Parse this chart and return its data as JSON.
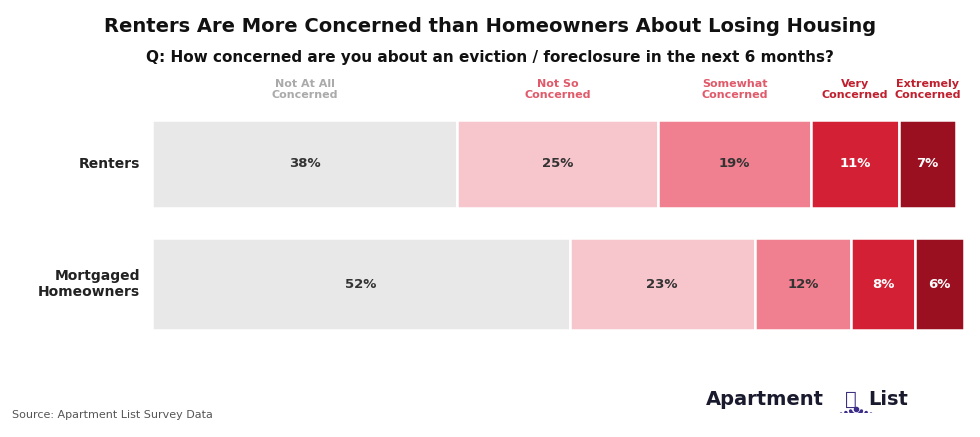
{
  "title": "Renters Are More Concerned than Homeowners About Losing Housing",
  "subtitle": "Q: How concerned are you about an eviction / foreclosure in the next 6 months?",
  "categories": [
    "Not At All\nConcerned",
    "Not So\nConcerned",
    "Somewhat\nConcerned",
    "Very\nConcerned",
    "Extremely\nConcerned"
  ],
  "rows": [
    {
      "label": "Renters",
      "values": [
        38,
        25,
        19,
        11,
        7
      ]
    },
    {
      "label": "Mortgaged\nHomeowners",
      "values": [
        52,
        23,
        12,
        8,
        6
      ]
    }
  ],
  "bar_colors": [
    "#e8e8e8",
    "#f7c5cc",
    "#f08090",
    "#d42035",
    "#9b1020"
  ],
  "text_colors_renters": [
    "#333333",
    "#333333",
    "#333333",
    "#ffffff",
    "#ffffff"
  ],
  "text_colors_homeowners": [
    "#333333",
    "#333333",
    "#333333",
    "#ffffff",
    "#ffffff"
  ],
  "header_colors": [
    "#aaaaaa",
    "#e05a6a",
    "#e05a6a",
    "#c0202e",
    "#c0202e"
  ],
  "source": "Source: Apartment List Survey Data",
  "background_color": "#ffffff",
  "title_fontsize": 14,
  "subtitle_fontsize": 11
}
